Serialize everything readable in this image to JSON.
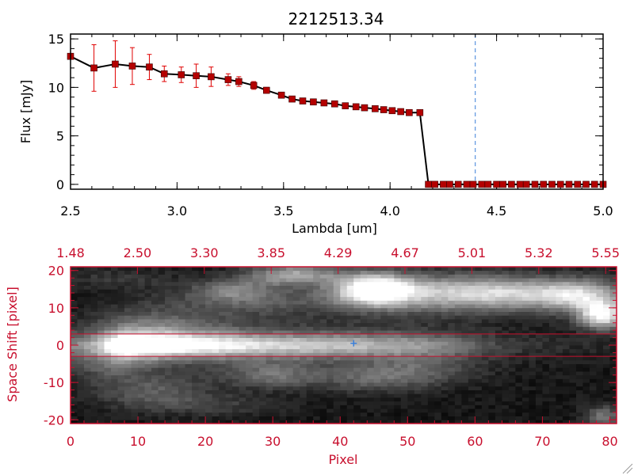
{
  "chart_data": [
    {
      "type": "line",
      "title": "2212513.34",
      "xlabel": "Lambda [um]",
      "ylabel": "Flux [mJy]",
      "xlim": [
        2.5,
        5.0
      ],
      "ylim": [
        -0.5,
        15.5
      ],
      "xticks": [
        "2.5",
        "3.0",
        "3.5",
        "4.0",
        "4.5",
        "5.0"
      ],
      "yticks": [
        "0",
        "5",
        "10",
        "15"
      ],
      "vline_x": 4.4,
      "series": [
        {
          "color": "#000000",
          "marker_color": "#b40000",
          "errorbar_color": "#e00000",
          "x": [
            2.5,
            2.61,
            2.71,
            2.79,
            2.87,
            2.94,
            3.02,
            3.09,
            3.16,
            3.24,
            3.29,
            3.36,
            3.42,
            3.49,
            3.54,
            3.59,
            3.64,
            3.69,
            3.74,
            3.79,
            3.84,
            3.88,
            3.93,
            3.97,
            4.01,
            4.05,
            4.09,
            4.14,
            4.18,
            4.21,
            4.25,
            4.28,
            4.32,
            4.36,
            4.39,
            4.43,
            4.46,
            4.5,
            4.53,
            4.57,
            4.61,
            4.64,
            4.68,
            4.72,
            4.76,
            4.8,
            4.84,
            4.88,
            4.92,
            4.96,
            5.0
          ],
          "y": [
            13.2,
            12.0,
            12.4,
            12.2,
            12.1,
            11.4,
            11.3,
            11.2,
            11.1,
            10.8,
            10.6,
            10.2,
            9.7,
            9.2,
            8.8,
            8.6,
            8.5,
            8.4,
            8.3,
            8.1,
            8.0,
            7.9,
            7.8,
            7.7,
            7.6,
            7.5,
            7.4,
            7.4,
            0.0,
            0.0,
            0.0,
            0.0,
            0.0,
            0.0,
            0.0,
            0.0,
            0.0,
            0.0,
            0.0,
            0.0,
            0.0,
            0.0,
            0.0,
            0.0,
            0.0,
            0.0,
            0.0,
            0.0,
            0.0,
            0.0,
            0.0
          ],
          "yerr": [
            0,
            2.4,
            2.4,
            1.9,
            1.3,
            0.8,
            0.8,
            1.2,
            1.0,
            0.6,
            0.5,
            0.4,
            0.3,
            0.3,
            0.2,
            0.2,
            0.2,
            0.2,
            0.2,
            0.2,
            0.2,
            0.2,
            0.2,
            0.2,
            0.2,
            0.2,
            0.2,
            0.2,
            0,
            0,
            0,
            0,
            0,
            0,
            0,
            0,
            0,
            0,
            0,
            0,
            0,
            0,
            0,
            0,
            0,
            0,
            0,
            0,
            0,
            0,
            0
          ]
        }
      ]
    },
    {
      "type": "heatmap",
      "colormap": "grayscale",
      "xlabel": "Pixel",
      "ylabel": "Space Shift [pixel]",
      "xlim": [
        0,
        81
      ],
      "ylim": [
        -21,
        21
      ],
      "xticks": [
        "0",
        "10",
        "20",
        "30",
        "40",
        "50",
        "60",
        "70",
        "80"
      ],
      "yticks": [
        "-20",
        "-10",
        "0",
        "10",
        "20"
      ],
      "top_axis_ticks": [
        "1.48",
        "2.50",
        "3.30",
        "3.85",
        "4.29",
        "4.67",
        "5.01",
        "5.32",
        "5.55"
      ],
      "band_lines_y": [
        3,
        -3
      ],
      "source_marker": {
        "x": 42,
        "y": 0.5,
        "color": "#3a7fd9"
      },
      "spectral_trace": {
        "y_center": 0,
        "intensity_at_x": [
          [
            0,
            0.28
          ],
          [
            3,
            0.35
          ],
          [
            5,
            0.55
          ],
          [
            8,
            0.95
          ],
          [
            12,
            0.85
          ],
          [
            18,
            0.7
          ],
          [
            25,
            0.62
          ],
          [
            32,
            0.55
          ],
          [
            40,
            0.5
          ],
          [
            50,
            0.4
          ],
          [
            58,
            0.25
          ],
          [
            64,
            0.12
          ],
          [
            72,
            0.06
          ],
          [
            81,
            0.03
          ]
        ]
      },
      "blobs": [
        {
          "x": 45,
          "y": 15,
          "sx": 4,
          "sy": 3,
          "amp": 0.92
        },
        {
          "x": 55,
          "y": 14,
          "sx": 9,
          "sy": 3.5,
          "amp": 0.55
        },
        {
          "x": 68,
          "y": 14,
          "sx": 8,
          "sy": 3,
          "amp": 0.5
        },
        {
          "x": 76,
          "y": 13,
          "sx": 4,
          "sy": 3,
          "amp": 0.5
        },
        {
          "x": 79,
          "y": 8,
          "sx": 2.5,
          "sy": 2.5,
          "amp": 0.85
        },
        {
          "x": 33,
          "y": 19,
          "sx": 5,
          "sy": 2,
          "amp": 0.55
        },
        {
          "x": 27,
          "y": 12,
          "sx": 10,
          "sy": 3,
          "amp": 0.25
        },
        {
          "x": 24,
          "y": 15,
          "sx": 4,
          "sy": 2,
          "amp": 0.3
        },
        {
          "x": 13,
          "y": 4.5,
          "sx": 7,
          "sy": 3.5,
          "amp": 0.25
        },
        {
          "x": 30,
          "y": -8,
          "sx": 5,
          "sy": 2.5,
          "amp": 0.3
        },
        {
          "x": 45,
          "y": -9,
          "sx": 6,
          "sy": 2.5,
          "amp": 0.25
        },
        {
          "x": 52,
          "y": -6,
          "sx": 6,
          "sy": 3,
          "amp": 0.2
        },
        {
          "x": 12,
          "y": -12,
          "sx": 6,
          "sy": 3,
          "amp": 0.25
        },
        {
          "x": 5,
          "y": -5,
          "sx": 4,
          "sy": 3,
          "amp": 0.2
        },
        {
          "x": 20,
          "y": -16,
          "sx": 8,
          "sy": 2,
          "amp": 0.15
        },
        {
          "x": 79,
          "y": -19,
          "sx": 2,
          "sy": 2,
          "amp": 0.35
        },
        {
          "x": 7,
          "y": 18,
          "sx": 6,
          "sy": 2,
          "amp": 0.12
        }
      ]
    }
  ]
}
